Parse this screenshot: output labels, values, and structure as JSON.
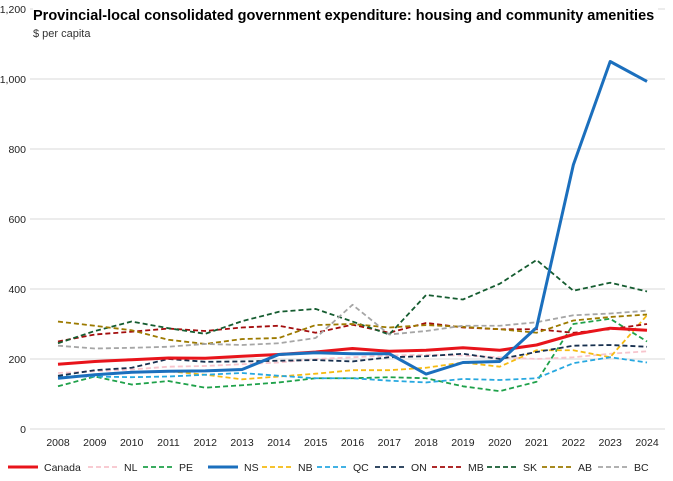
{
  "chart_data": {
    "type": "line",
    "title": "Provincial-local consolidated government expenditure: housing and community amenities",
    "ylabel": "$ per capita",
    "xlabel": "",
    "ylim": [
      0,
      1200
    ],
    "yticks": [
      0,
      200,
      400,
      600,
      800,
      1000,
      1200
    ],
    "ytick_labels": [
      "0",
      "200",
      "400",
      "600",
      "800",
      "1,000",
      "1,200"
    ],
    "grid": "horizontal",
    "legend": "bottom",
    "x": [
      "2008",
      "2009",
      "2010",
      "2011",
      "2012",
      "2013",
      "2014",
      "2015",
      "2016",
      "2017",
      "2018",
      "2019",
      "2020",
      "2021",
      "2022",
      "2023",
      "2024"
    ],
    "series": [
      {
        "name": "Canada",
        "color": "#e8141b",
        "style": "solid",
        "values": [
          185,
          193,
          198,
          203,
          202,
          208,
          213,
          220,
          230,
          222,
          225,
          232,
          225,
          240,
          270,
          288,
          282
        ]
      },
      {
        "name": "NL",
        "color": "#f7c4cc",
        "style": "dashed",
        "values": [
          160,
          165,
          170,
          178,
          180,
          185,
          190,
          200,
          205,
          210,
          212,
          210,
          205,
          200,
          205,
          215,
          222
        ]
      },
      {
        "name": "PE",
        "color": "#1fa14a",
        "style": "dashed",
        "values": [
          122,
          150,
          127,
          137,
          118,
          125,
          133,
          145,
          145,
          148,
          145,
          122,
          108,
          135,
          300,
          315,
          250
        ]
      },
      {
        "name": "NS",
        "color": "#1b6fbd",
        "style": "solid",
        "values": [
          145,
          155,
          162,
          165,
          166,
          170,
          213,
          218,
          215,
          215,
          157,
          190,
          193,
          290,
          755,
          1050,
          993
        ]
      },
      {
        "name": "NB",
        "color": "#f5bb12",
        "style": "dashed",
        "values": [
          148,
          155,
          162,
          165,
          155,
          142,
          150,
          158,
          168,
          168,
          175,
          190,
          178,
          225,
          225,
          205,
          325
        ]
      },
      {
        "name": "QC",
        "color": "#27a8e0",
        "style": "dashed",
        "values": [
          150,
          150,
          148,
          150,
          155,
          160,
          152,
          145,
          145,
          138,
          133,
          143,
          140,
          145,
          188,
          205,
          190
        ]
      },
      {
        "name": "ON",
        "color": "#17304f",
        "style": "dashed",
        "values": [
          152,
          168,
          175,
          200,
          192,
          193,
          195,
          197,
          193,
          205,
          208,
          215,
          200,
          220,
          238,
          240,
          235
        ]
      },
      {
        "name": "MB",
        "color": "#a30d0d",
        "style": "dashed",
        "values": [
          250,
          270,
          278,
          287,
          280,
          290,
          295,
          275,
          298,
          275,
          303,
          290,
          285,
          285,
          275,
          285,
          300
        ]
      },
      {
        "name": "SK",
        "color": "#155c30",
        "style": "dashed",
        "values": [
          245,
          280,
          307,
          288,
          272,
          308,
          335,
          343,
          307,
          270,
          383,
          370,
          415,
          483,
          395,
          418,
          393
        ]
      },
      {
        "name": "AB",
        "color": "#9c7a00",
        "style": "dashed",
        "values": [
          307,
          295,
          282,
          255,
          243,
          257,
          260,
          297,
          300,
          290,
          297,
          292,
          285,
          275,
          310,
          320,
          327
        ]
      },
      {
        "name": "BC",
        "color": "#a6a6a6",
        "style": "dashed",
        "values": [
          238,
          230,
          232,
          235,
          243,
          240,
          245,
          260,
          355,
          270,
          280,
          295,
          295,
          305,
          325,
          330,
          338
        ]
      }
    ]
  }
}
